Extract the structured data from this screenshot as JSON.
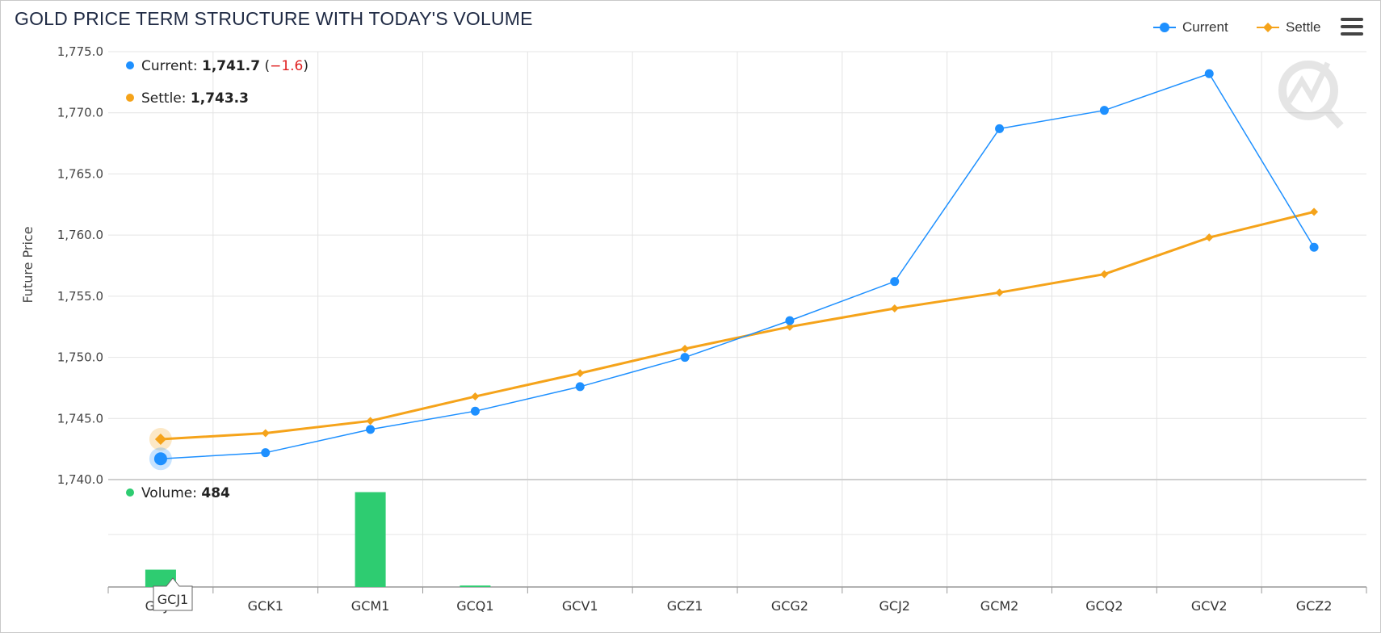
{
  "title": "GOLD PRICE TERM STRUCTURE WITH TODAY'S VOLUME",
  "legend": {
    "current": "Current",
    "settle": "Settle"
  },
  "menu_icon": "hamburger-menu-icon",
  "colors": {
    "current": "#1e90ff",
    "settle": "#f5a31a",
    "volume": "#2ecc71",
    "negative": "#e02020"
  },
  "tooltip": {
    "current_label": "Current: ",
    "current_value": "1,741.7",
    "current_change": "−1.6",
    "settle_label": "Settle: ",
    "settle_value": "1,743.3",
    "volume_label": "Volume: ",
    "volume_value": "484",
    "x_label": "GCJ1"
  },
  "chart_data": {
    "type": "line",
    "categories": [
      "GCJ1",
      "GCK1",
      "GCM1",
      "GCQ1",
      "GCV1",
      "GCZ1",
      "GCG2",
      "GCJ2",
      "GCM2",
      "GCQ2",
      "GCV2",
      "GCZ2"
    ],
    "ylabel": "Future Price",
    "ylim": [
      1740,
      1775
    ],
    "yticks": [
      "1,775.0",
      "1,770.0",
      "1,765.0",
      "1,760.0",
      "1,755.0",
      "1,750.0",
      "1,745.0",
      "1,740.0"
    ],
    "series": [
      {
        "name": "Current",
        "values": [
          1741.7,
          1742.2,
          1744.1,
          1745.6,
          1747.6,
          1750.0,
          1753.0,
          1756.2,
          1768.7,
          1770.2,
          1773.2,
          1759.0
        ]
      },
      {
        "name": "Settle",
        "values": [
          1743.3,
          1743.8,
          1744.8,
          1746.8,
          1748.7,
          1750.7,
          1752.5,
          1754.0,
          1755.3,
          1756.8,
          1759.8,
          1761.9
        ]
      },
      {
        "name": "Volume",
        "type": "bar",
        "values": [
          484,
          0,
          2650,
          40,
          0,
          0,
          0,
          0,
          0,
          0,
          0,
          0
        ]
      }
    ],
    "grid": true,
    "legend_position": "top-right"
  }
}
